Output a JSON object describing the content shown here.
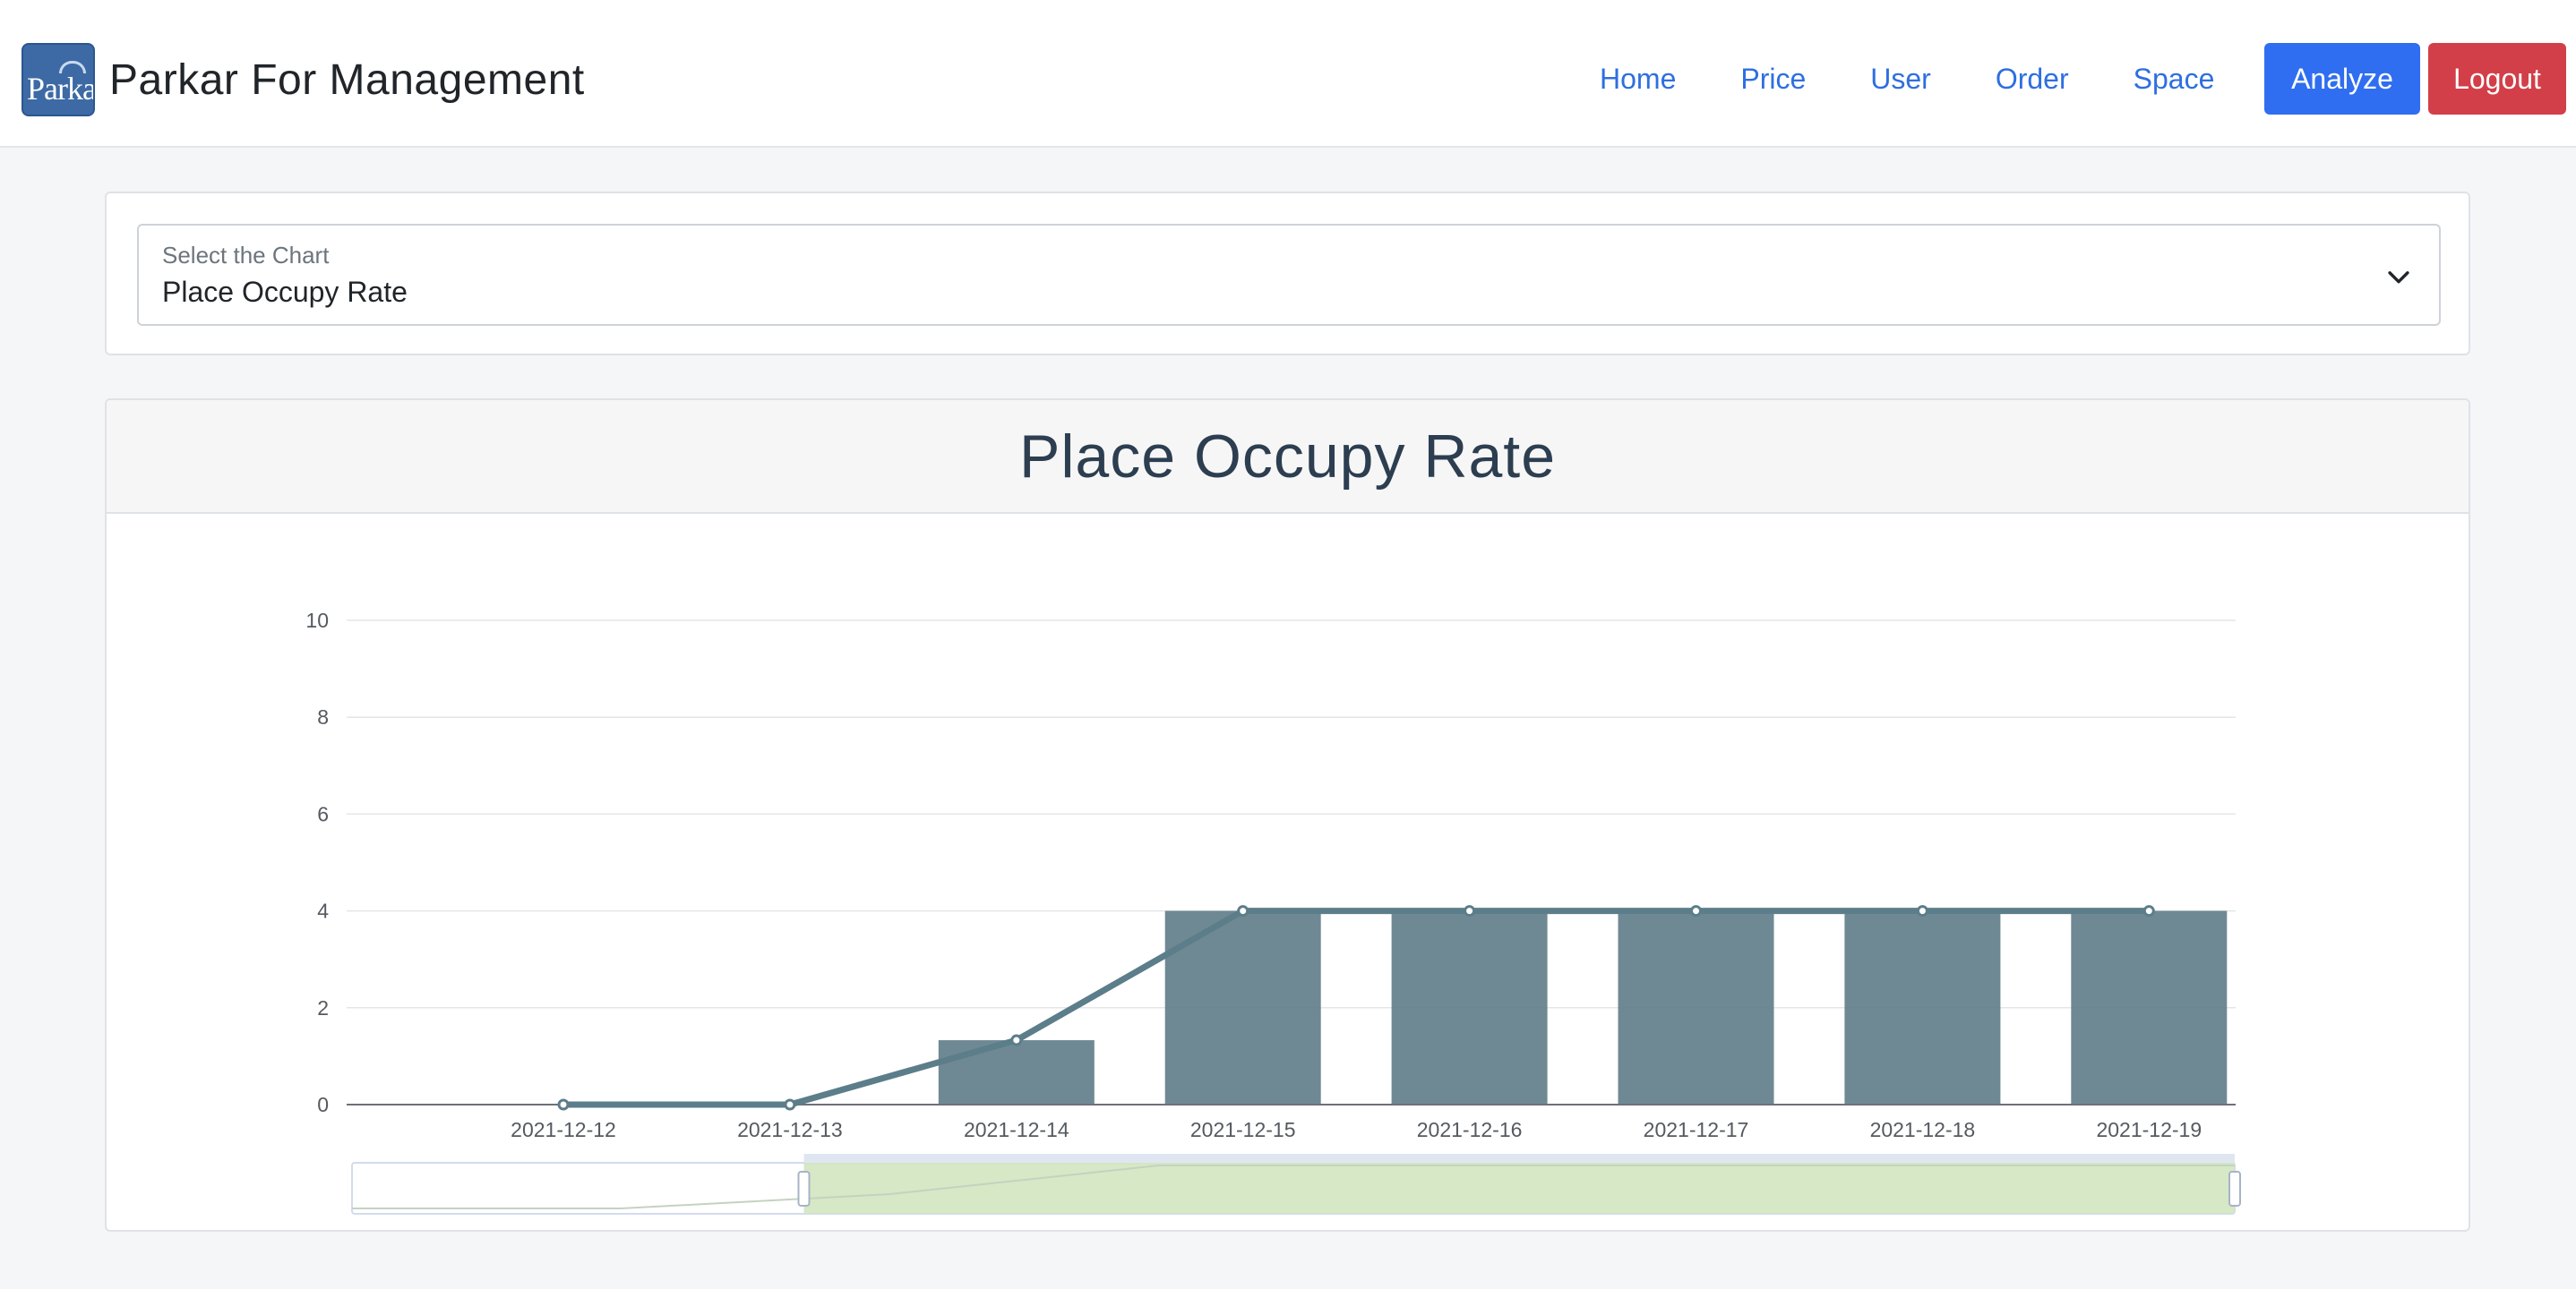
{
  "app": {
    "brand_name": "Parkar For Management",
    "logo_text": "Parkar"
  },
  "nav": {
    "links": [
      "Home",
      "Price",
      "User",
      "Order",
      "Space"
    ],
    "analyze_label": "Analyze",
    "logout_label": "Logout"
  },
  "chart_selector": {
    "label": "Select the Chart",
    "value": "Place Occupy Rate"
  },
  "chart_panel": {
    "title": "Place Occupy Rate"
  },
  "chart_data": {
    "type": "bar",
    "categories": [
      "2021-12-12",
      "2021-12-13",
      "2021-12-14",
      "2021-12-15",
      "2021-12-16",
      "2021-12-17",
      "2021-12-18",
      "2021-12-19"
    ],
    "series": [
      {
        "type": "bar",
        "values": [
          0,
          0,
          1.33,
          4,
          4,
          4,
          4,
          4
        ]
      },
      {
        "type": "line",
        "values": [
          0,
          0,
          1.33,
          4,
          4,
          4,
          4,
          4
        ]
      }
    ],
    "ylim": [
      0,
      10
    ],
    "yticks": [
      0,
      2,
      4,
      6,
      8,
      10
    ],
    "grid": true,
    "data_zoom": {
      "start": 0.24,
      "end": 1.0
    }
  },
  "colors": {
    "bar": "#5f7c88",
    "line": "#5c7d8a",
    "primary": "#2f6ef0",
    "danger": "#d23f49",
    "zoom_fill": "#d1e6bf"
  }
}
